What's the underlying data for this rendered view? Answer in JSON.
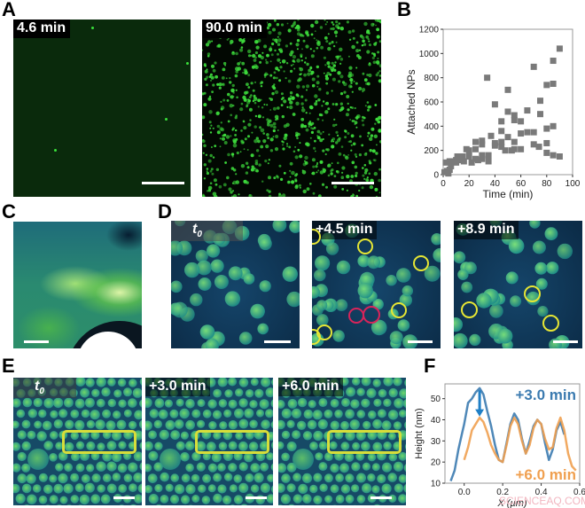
{
  "panels": {
    "A": {
      "label": "A",
      "images": [
        {
          "time_label": "4.6 min"
        },
        {
          "time_label": "90.0 min"
        }
      ]
    },
    "B": {
      "label": "B"
    },
    "C": {
      "label": "C"
    },
    "D": {
      "label": "D",
      "images": [
        {
          "time_label": "t",
          "time_sub": "0"
        },
        {
          "time_label": "+4.5 min"
        },
        {
          "time_label": "+8.9 min"
        }
      ]
    },
    "E": {
      "label": "E",
      "images": [
        {
          "time_label": "t",
          "time_sub": "0"
        },
        {
          "time_label": "+3.0 min"
        },
        {
          "time_label": "+6.0 min"
        }
      ]
    },
    "F": {
      "label": "F"
    }
  },
  "colors": {
    "fluor_green": "#39e03a",
    "afm_dark": "#0b2a45",
    "afm_particle": "#2fb37a",
    "highlight_yellow": "#e6e634",
    "highlight_red": "#d8245a",
    "series_blue": "#3c7bb0",
    "series_orange": "#f0a050",
    "marker_gray": "#7a7a7a"
  },
  "watermark": "SCIENCEAQ.COM",
  "chart_data": [
    {
      "panel": "B",
      "type": "scatter",
      "title": "",
      "xlabel": "Time (min)",
      "ylabel": "Attached NPs",
      "xlim": [
        0,
        100
      ],
      "ylim": [
        0,
        1200
      ],
      "xticks": [
        0,
        20,
        40,
        60,
        80,
        100
      ],
      "yticks": [
        0,
        200,
        400,
        600,
        800,
        1000,
        1200
      ],
      "grid": false,
      "marker": "square",
      "points": [
        [
          1,
          20
        ],
        [
          2,
          100
        ],
        [
          3,
          30
        ],
        [
          4,
          10
        ],
        [
          5,
          110
        ],
        [
          5,
          40
        ],
        [
          6,
          70
        ],
        [
          7,
          110
        ],
        [
          10,
          120
        ],
        [
          10,
          100
        ],
        [
          11,
          150
        ],
        [
          14,
          120
        ],
        [
          15,
          150
        ],
        [
          16,
          110
        ],
        [
          18,
          210
        ],
        [
          20,
          200
        ],
        [
          20,
          150
        ],
        [
          22,
          100
        ],
        [
          25,
          270
        ],
        [
          25,
          210
        ],
        [
          25,
          130
        ],
        [
          27,
          120
        ],
        [
          30,
          280
        ],
        [
          30,
          250
        ],
        [
          30,
          160
        ],
        [
          30,
          130
        ],
        [
          35,
          160
        ],
        [
          35,
          110
        ],
        [
          34,
          800
        ],
        [
          37,
          320
        ],
        [
          40,
          580
        ],
        [
          40,
          260
        ],
        [
          40,
          240
        ],
        [
          45,
          440
        ],
        [
          45,
          360
        ],
        [
          45,
          270
        ],
        [
          45,
          230
        ],
        [
          48,
          200
        ],
        [
          50,
          700
        ],
        [
          50,
          520
        ],
        [
          50,
          310
        ],
        [
          53,
          200
        ],
        [
          55,
          490
        ],
        [
          55,
          450
        ],
        [
          55,
          270
        ],
        [
          55,
          210
        ],
        [
          60,
          440
        ],
        [
          60,
          340
        ],
        [
          60,
          210
        ],
        [
          65,
          530
        ],
        [
          65,
          350
        ],
        [
          70,
          890
        ],
        [
          70,
          350
        ],
        [
          70,
          250
        ],
        [
          74,
          230
        ],
        [
          75,
          610
        ],
        [
          75,
          500
        ],
        [
          80,
          740
        ],
        [
          80,
          380
        ],
        [
          80,
          260
        ],
        [
          80,
          180
        ],
        [
          85,
          940
        ],
        [
          85,
          750
        ],
        [
          85,
          400
        ],
        [
          85,
          160
        ],
        [
          90,
          1040
        ],
        [
          90,
          150
        ]
      ]
    },
    {
      "panel": "F",
      "type": "line",
      "title": "",
      "xlabel": "X (µm)",
      "ylabel": "Height (nm)",
      "xlim": [
        -0.1,
        0.6
      ],
      "ylim": [
        10,
        57
      ],
      "xticks": [
        0.0,
        0.2,
        0.4,
        0.6
      ],
      "yticks": [
        10,
        20,
        30,
        40,
        50
      ],
      "grid": false,
      "annotation": "arrow from peak of +3.0 min (~55 nm at x~0.08) down to +6.0 min peak (~41 nm)",
      "series": [
        {
          "name": "+3.0 min",
          "color": "#3c7bb0",
          "x": [
            -0.07,
            -0.05,
            -0.03,
            -0.01,
            0.0,
            0.02,
            0.04,
            0.06,
            0.08,
            0.1,
            0.12,
            0.14,
            0.16,
            0.18,
            0.2,
            0.22,
            0.24,
            0.26,
            0.28,
            0.3,
            0.32,
            0.34,
            0.36,
            0.38,
            0.4,
            0.42,
            0.44,
            0.46,
            0.48,
            0.5,
            0.52
          ],
          "y": [
            11,
            16,
            26,
            34,
            38,
            48,
            50,
            53,
            55,
            52,
            44,
            37,
            28,
            21,
            20,
            29,
            38,
            43,
            40,
            31,
            24,
            30,
            37,
            40,
            38,
            29,
            21,
            26,
            35,
            39,
            33
          ]
        },
        {
          "name": "+6.0 min",
          "color": "#f0a050",
          "x": [
            0.0,
            0.02,
            0.04,
            0.06,
            0.08,
            0.1,
            0.12,
            0.14,
            0.16,
            0.18,
            0.2,
            0.22,
            0.24,
            0.26,
            0.28,
            0.3,
            0.32,
            0.34,
            0.36,
            0.38,
            0.4,
            0.42,
            0.44,
            0.46,
            0.48,
            0.5,
            0.52,
            0.54,
            0.56,
            0.58
          ],
          "y": [
            21,
            27,
            35,
            38,
            41,
            39,
            34,
            28,
            24,
            21,
            20,
            28,
            37,
            41,
            38,
            30,
            24,
            28,
            36,
            40,
            38,
            31,
            26,
            27,
            36,
            41,
            35,
            24,
            18,
            16
          ]
        }
      ]
    }
  ]
}
